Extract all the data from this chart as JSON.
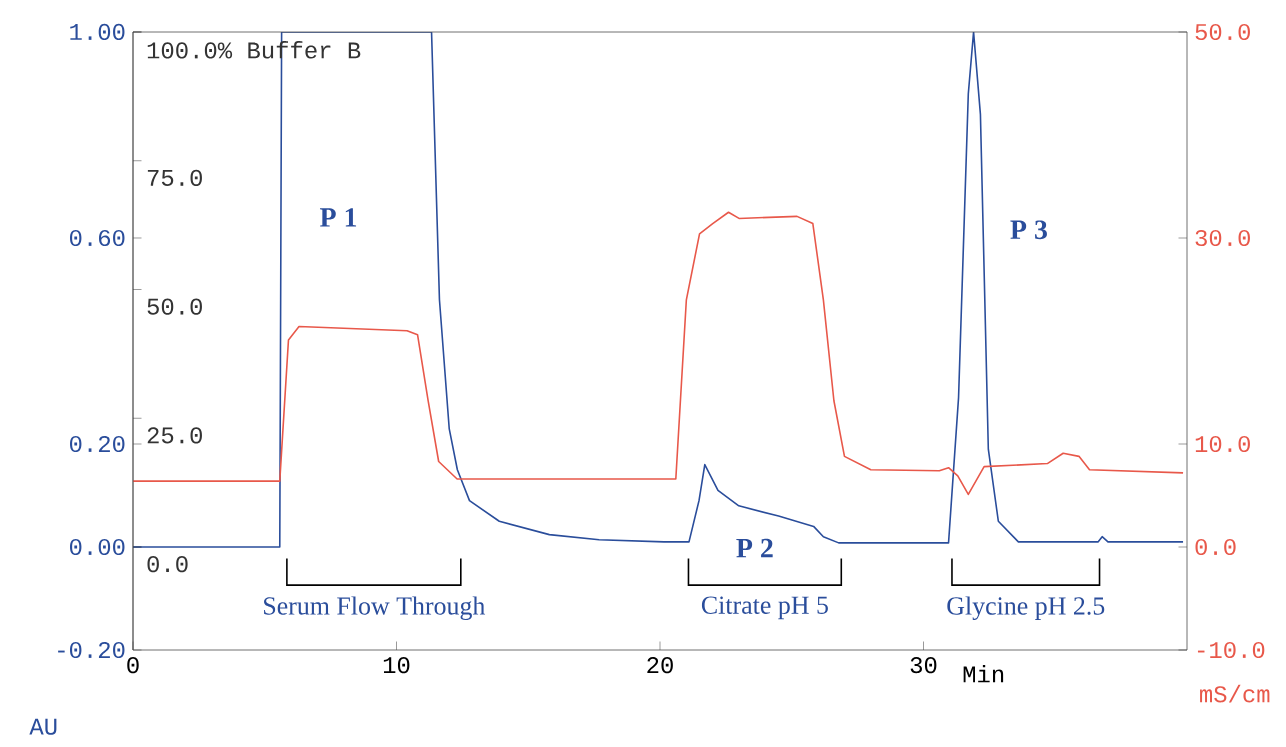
{
  "chart_data": {
    "type": "line",
    "xlabel": "Min",
    "ylabel": "AU",
    "y2label": "mS/cm",
    "xlim": [
      0,
      40
    ],
    "xticks": [
      0,
      10,
      20,
      30
    ],
    "ylim": [
      -0.2,
      1.0
    ],
    "yticks": [
      {
        "value": 1.0,
        "label": "1.00"
      },
      {
        "value": 0.6,
        "label": "0.60"
      },
      {
        "value": 0.2,
        "label": "0.20"
      },
      {
        "value": 0,
        "label": "0.00"
      },
      {
        "value": -0.2,
        "label": "-0.20"
      }
    ],
    "y2lim": [
      -10,
      50
    ],
    "y2ticks": [
      {
        "value": 50,
        "label": "50.0"
      },
      {
        "value": 30,
        "label": "30.0"
      },
      {
        "value": 10,
        "label": "10.0"
      },
      {
        "value": 0,
        "label": "0.0"
      },
      {
        "value": -10,
        "label": "-10.0"
      }
    ],
    "y3lim": [
      -20,
      100
    ],
    "y3ticks": [
      {
        "value": 100,
        "label": "100.0% Buffer B"
      },
      {
        "value": 75,
        "label": "75.0"
      },
      {
        "value": 50,
        "label": "50.0"
      },
      {
        "value": 25,
        "label": "25.0"
      },
      {
        "value": 0,
        "label": "0.0"
      }
    ],
    "grid": false,
    "marker": "none",
    "line_style": "solid",
    "series": [
      {
        "color": "#2a4d9b",
        "x": [
          0,
          5.57,
          5.64,
          11.33,
          11.63,
          12.0,
          12.31,
          12.77,
          13.9,
          15.8,
          17.69,
          20.15,
          21.1,
          21.48,
          21.7,
          22.2,
          22.99,
          24.5,
          25.83,
          26.2,
          26.78,
          30.95,
          31.33,
          31.7,
          31.9,
          32.16,
          32.46,
          32.84,
          33.6,
          36.63,
          36.78,
          37.0,
          39.85
        ],
        "values": [
          0.0,
          0.0,
          1.0,
          1.0,
          0.48,
          0.23,
          0.15,
          0.09,
          0.05,
          0.024,
          0.014,
          0.01,
          0.01,
          0.09,
          0.16,
          0.11,
          0.08,
          0.06,
          0.04,
          0.02,
          0.008,
          0.008,
          0.29,
          0.88,
          1.0,
          0.84,
          0.19,
          0.05,
          0.01,
          0.01,
          0.02,
          0.01,
          0.01
        ]
      },
      {
        "color": "#e8584a",
        "axis": "y2",
        "x": [
          0,
          5.57,
          5.9,
          6.3,
          10.4,
          10.8,
          11.2,
          11.6,
          12.3,
          20.6,
          21.0,
          21.5,
          22.0,
          22.6,
          23.0,
          25.2,
          25.8,
          26.2,
          26.6,
          27.0,
          28.0,
          30.6,
          30.95,
          31.3,
          31.7,
          32.3,
          34.7,
          35.3,
          35.9,
          36.3,
          39.85
        ],
        "values": [
          6.4,
          6.4,
          20.1,
          21.4,
          21.0,
          20.6,
          14.2,
          8.3,
          6.6,
          6.6,
          24.0,
          30.4,
          31.4,
          32.5,
          31.9,
          32.1,
          31.4,
          24.0,
          14.2,
          8.8,
          7.5,
          7.4,
          7.7,
          6.9,
          5.1,
          7.8,
          8.1,
          9.1,
          8.8,
          7.5,
          7.2
        ]
      }
    ],
    "annotations": [
      "P 1",
      "P 2",
      "P 3",
      "Serum Flow Through",
      "Citrate pH 5",
      "Glycine pH 2.5"
    ]
  }
}
